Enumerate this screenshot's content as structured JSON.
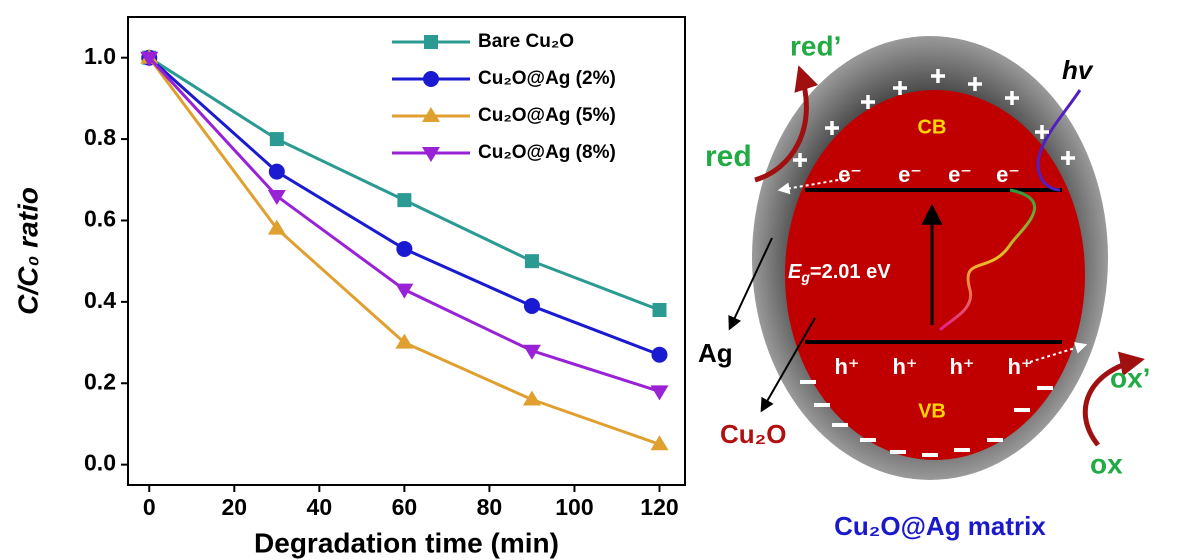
{
  "chart_data": {
    "type": "line",
    "x_label": "Degradation time (min)",
    "y_label": "C/C₀ ratio",
    "x": [
      0,
      30,
      60,
      90,
      120
    ],
    "series": [
      {
        "name": "Bare Cu₂O",
        "color": "#2a9a92",
        "marker": "square",
        "values": [
          1.0,
          0.8,
          0.65,
          0.5,
          0.38
        ]
      },
      {
        "name": "Cu₂O@Ag (2%)",
        "color": "#1a1ad0",
        "marker": "circle",
        "values": [
          1.0,
          0.72,
          0.53,
          0.39,
          0.27
        ]
      },
      {
        "name": "Cu₂O@Ag (5%)",
        "color": "#e0a030",
        "marker": "triangle-up",
        "values": [
          1.0,
          0.58,
          0.3,
          0.16,
          0.05
        ]
      },
      {
        "name": "Cu₂O@Ag (8%)",
        "color": "#9a22d6",
        "marker": "triangle-down",
        "values": [
          1.0,
          0.66,
          0.43,
          0.28,
          0.18
        ]
      }
    ],
    "xlim": [
      -5,
      126
    ],
    "ylim": [
      -0.05,
      1.1
    ],
    "xticks": [
      0,
      20,
      40,
      60,
      80,
      100,
      120
    ],
    "yticks": [
      {
        "value": 0,
        "label": "0.0"
      },
      0.2,
      0.4,
      0.6,
      0.8,
      {
        "value": 1,
        "label": "1.0"
      }
    ],
    "legend": "upper right"
  },
  "diagram": {
    "red_prime": "red’",
    "hv": "hv",
    "red": "red",
    "cb": "CB",
    "electrons": [
      "e⁻",
      "e⁻",
      "e⁻",
      "e⁻"
    ],
    "eg_symbol": "E",
    "eg_sub": "g",
    "eg_value": "=2.01 eV",
    "ag": "Ag",
    "holes": [
      "h⁺",
      "h⁺",
      "h⁺",
      "h⁺"
    ],
    "vb": "VB",
    "cu2o": "Cu₂O",
    "ox_prime": "ox’",
    "ox": "ox",
    "caption": "Cu₂O@Ag matrix"
  }
}
